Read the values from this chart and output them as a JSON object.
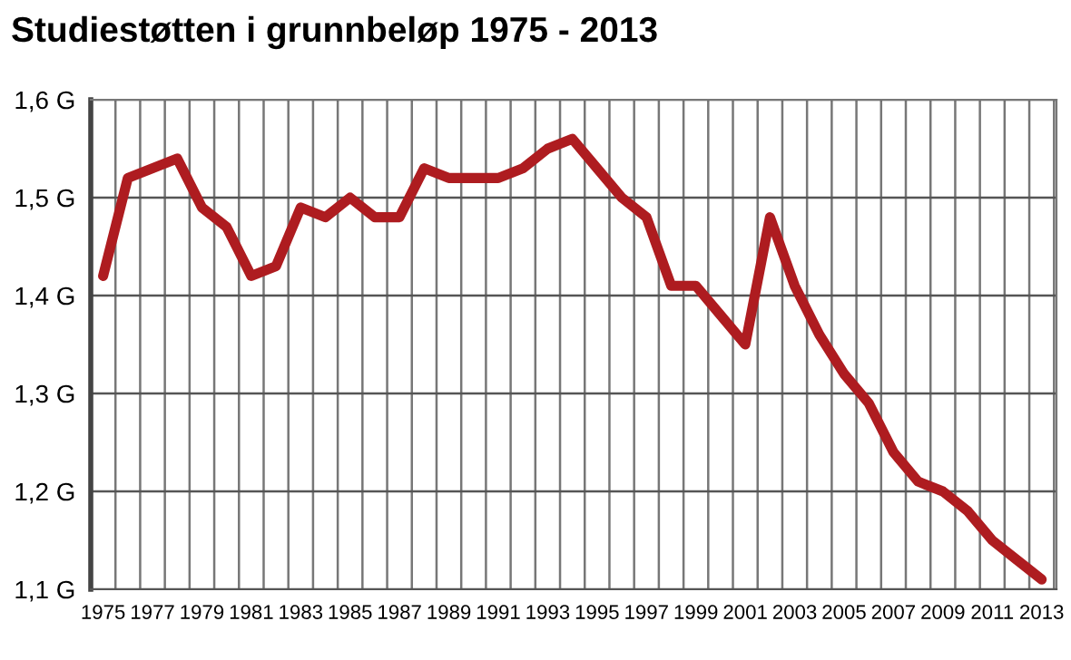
{
  "chart_data": {
    "type": "line",
    "title": "Studiestøtten i grunnbeløp 1975 - 2013",
    "x": [
      1975,
      1976,
      1977,
      1978,
      1979,
      1980,
      1981,
      1982,
      1983,
      1984,
      1985,
      1986,
      1987,
      1988,
      1989,
      1990,
      1991,
      1992,
      1993,
      1994,
      1995,
      1996,
      1997,
      1998,
      1999,
      2000,
      2001,
      2002,
      2003,
      2004,
      2005,
      2006,
      2007,
      2008,
      2009,
      2010,
      2011,
      2012,
      2013
    ],
    "series": [
      {
        "color": "#ae1c20",
        "values": [
          1.42,
          1.52,
          1.53,
          1.54,
          1.49,
          1.47,
          1.42,
          1.43,
          1.49,
          1.48,
          1.5,
          1.48,
          1.48,
          1.53,
          1.52,
          1.52,
          1.52,
          1.53,
          1.55,
          1.56,
          1.53,
          1.5,
          1.48,
          1.41,
          1.41,
          1.38,
          1.35,
          1.48,
          1.41,
          1.36,
          1.32,
          1.29,
          1.24,
          1.21,
          1.2,
          1.18,
          1.15,
          1.13,
          1.11
        ]
      }
    ],
    "xlim": [
      1974.5,
      2013.6
    ],
    "xticks": [
      1975,
      1977,
      1979,
      1981,
      1983,
      1985,
      1987,
      1989,
      1991,
      1993,
      1995,
      1997,
      1999,
      2001,
      2003,
      2005,
      2007,
      2009,
      2011,
      2013
    ],
    "ylim": [
      1.1,
      1.6
    ],
    "yticks": [
      {
        "value": 1.1,
        "label": "1,1 G"
      },
      {
        "value": 1.2,
        "label": "1,2 G"
      },
      {
        "value": 1.3,
        "label": "1,3 G"
      },
      {
        "value": 1.4,
        "label": "1,4 G"
      },
      {
        "value": 1.5,
        "label": "1,5 G"
      },
      {
        "value": 1.6,
        "label": "1,6 G"
      }
    ],
    "grid": true,
    "marker": "none",
    "line_style": "solid",
    "legend": false
  }
}
